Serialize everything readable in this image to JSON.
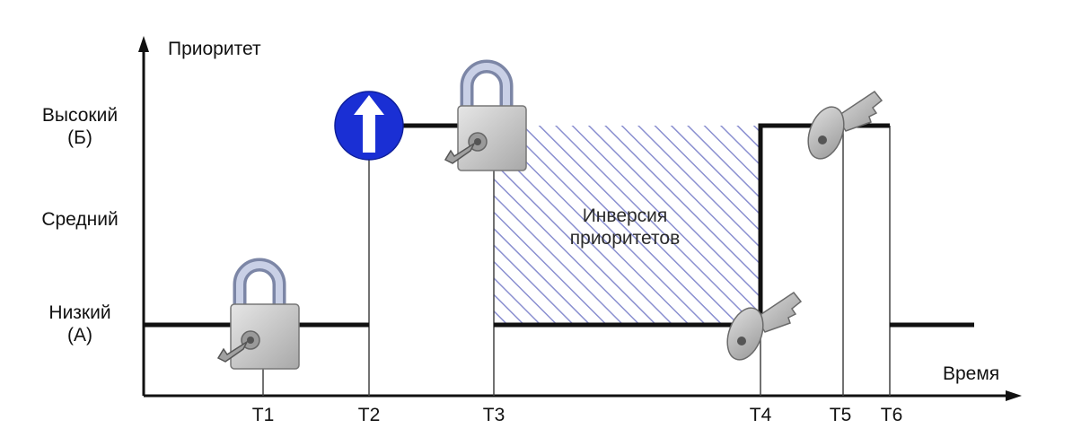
{
  "axes": {
    "y_title": "Приоритет",
    "x_title": "Время"
  },
  "priority_levels": [
    {
      "line1": "Высокий",
      "line2": "(Б)"
    },
    {
      "line1": "Средний",
      "line2": ""
    },
    {
      "line1": "Низкий",
      "line2": "(А)"
    }
  ],
  "time_marks": [
    "T1",
    "T2",
    "T3",
    "T4",
    "T5",
    "T6"
  ],
  "region": {
    "line1": "Инверсия",
    "line2": "приоритетов"
  },
  "icons": [
    "padlock-icon",
    "up-arrow-sign-icon",
    "padlock-icon",
    "key-icon",
    "key-icon"
  ],
  "colors": {
    "line": "#111111",
    "hatch": "#8a8fd0",
    "sign": "#1a2fd4",
    "lock_body": "#c9c9c9",
    "shackle": "#a9b2cc"
  }
}
